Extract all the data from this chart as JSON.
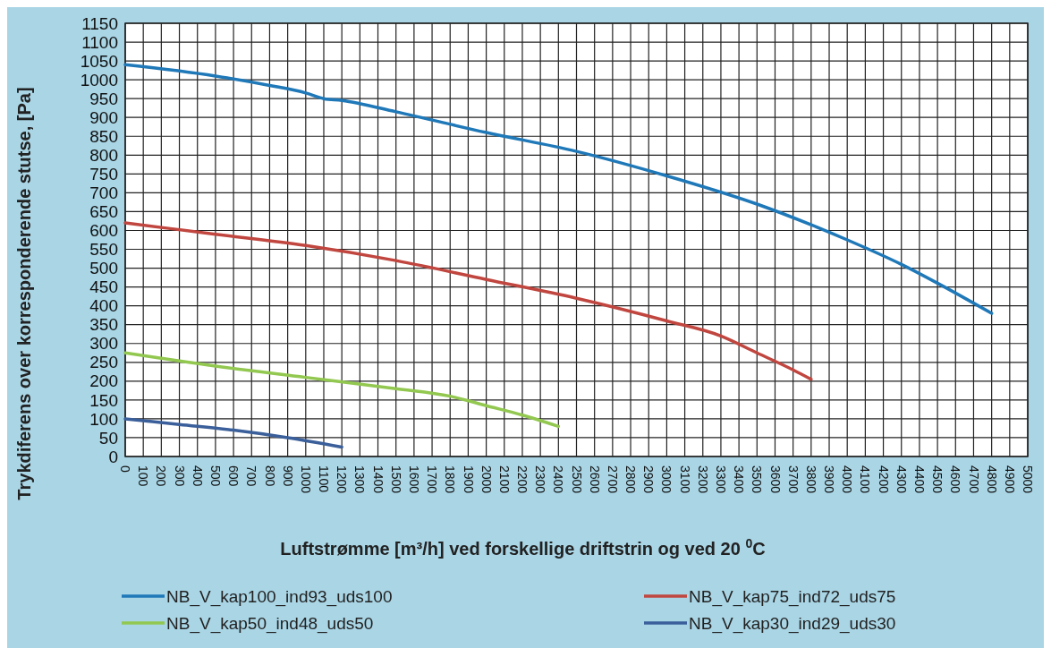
{
  "chart_data": {
    "type": "line",
    "xlabel": "Luftstrømme [m³/h] ved forskellige driftstrin og ved 20 $^{0}$C",
    "ylabel": "Trykdiferens over korresponderende stutse, [Pa]",
    "xlim": [
      0,
      5000
    ],
    "ylim": [
      0,
      1150
    ],
    "xticks": [
      0,
      100,
      200,
      300,
      400,
      500,
      600,
      700,
      800,
      900,
      1000,
      1100,
      1200,
      1300,
      1400,
      1500,
      1600,
      1700,
      1800,
      1900,
      2000,
      2100,
      2200,
      2300,
      2400,
      2500,
      2600,
      2700,
      2800,
      2900,
      3000,
      3100,
      3200,
      3300,
      3400,
      3500,
      3600,
      3700,
      3800,
      3900,
      4000,
      4100,
      4200,
      4300,
      4400,
      4500,
      4600,
      4700,
      4800,
      4900,
      5000
    ],
    "yticks": [
      0,
      50,
      100,
      150,
      200,
      250,
      300,
      350,
      400,
      450,
      500,
      550,
      600,
      650,
      700,
      750,
      800,
      850,
      900,
      950,
      1000,
      1050,
      1100,
      1150
    ],
    "grid": true,
    "legend": "bottom",
    "marker": "none",
    "line_style": "solid",
    "series": [
      {
        "name": "NB_V_kap100_ind93_uds100",
        "color": "#1f78b8",
        "x": [
          0,
          500,
          800,
          1000,
          1100,
          1200,
          1500,
          2000,
          2500,
          3000,
          3500,
          3800,
          4000,
          4300,
          4500,
          4800
        ],
        "values": [
          1040,
          1010,
          985,
          965,
          950,
          945,
          915,
          860,
          810,
          745,
          670,
          615,
          575,
          510,
          460,
          380
        ]
      },
      {
        "name": "NB_V_kap75_ind72_uds75",
        "color": "#c0463f",
        "x": [
          0,
          500,
          1000,
          1500,
          2000,
          2500,
          3000,
          3300,
          3500,
          3700,
          3800
        ],
        "values": [
          620,
          590,
          560,
          520,
          470,
          420,
          360,
          320,
          275,
          230,
          205
        ]
      },
      {
        "name": "NB_V_kap50_ind48_uds50",
        "color": "#92c850",
        "x": [
          0,
          500,
          1000,
          1500,
          1800,
          2000,
          2200,
          2400
        ],
        "values": [
          275,
          240,
          210,
          180,
          160,
          135,
          110,
          80
        ]
      },
      {
        "name": "NB_V_kap30_ind29_uds30",
        "color": "#3a5f9a",
        "x": [
          0,
          300,
          600,
          900,
          1200
        ],
        "values": [
          100,
          85,
          70,
          50,
          25
        ]
      }
    ]
  }
}
